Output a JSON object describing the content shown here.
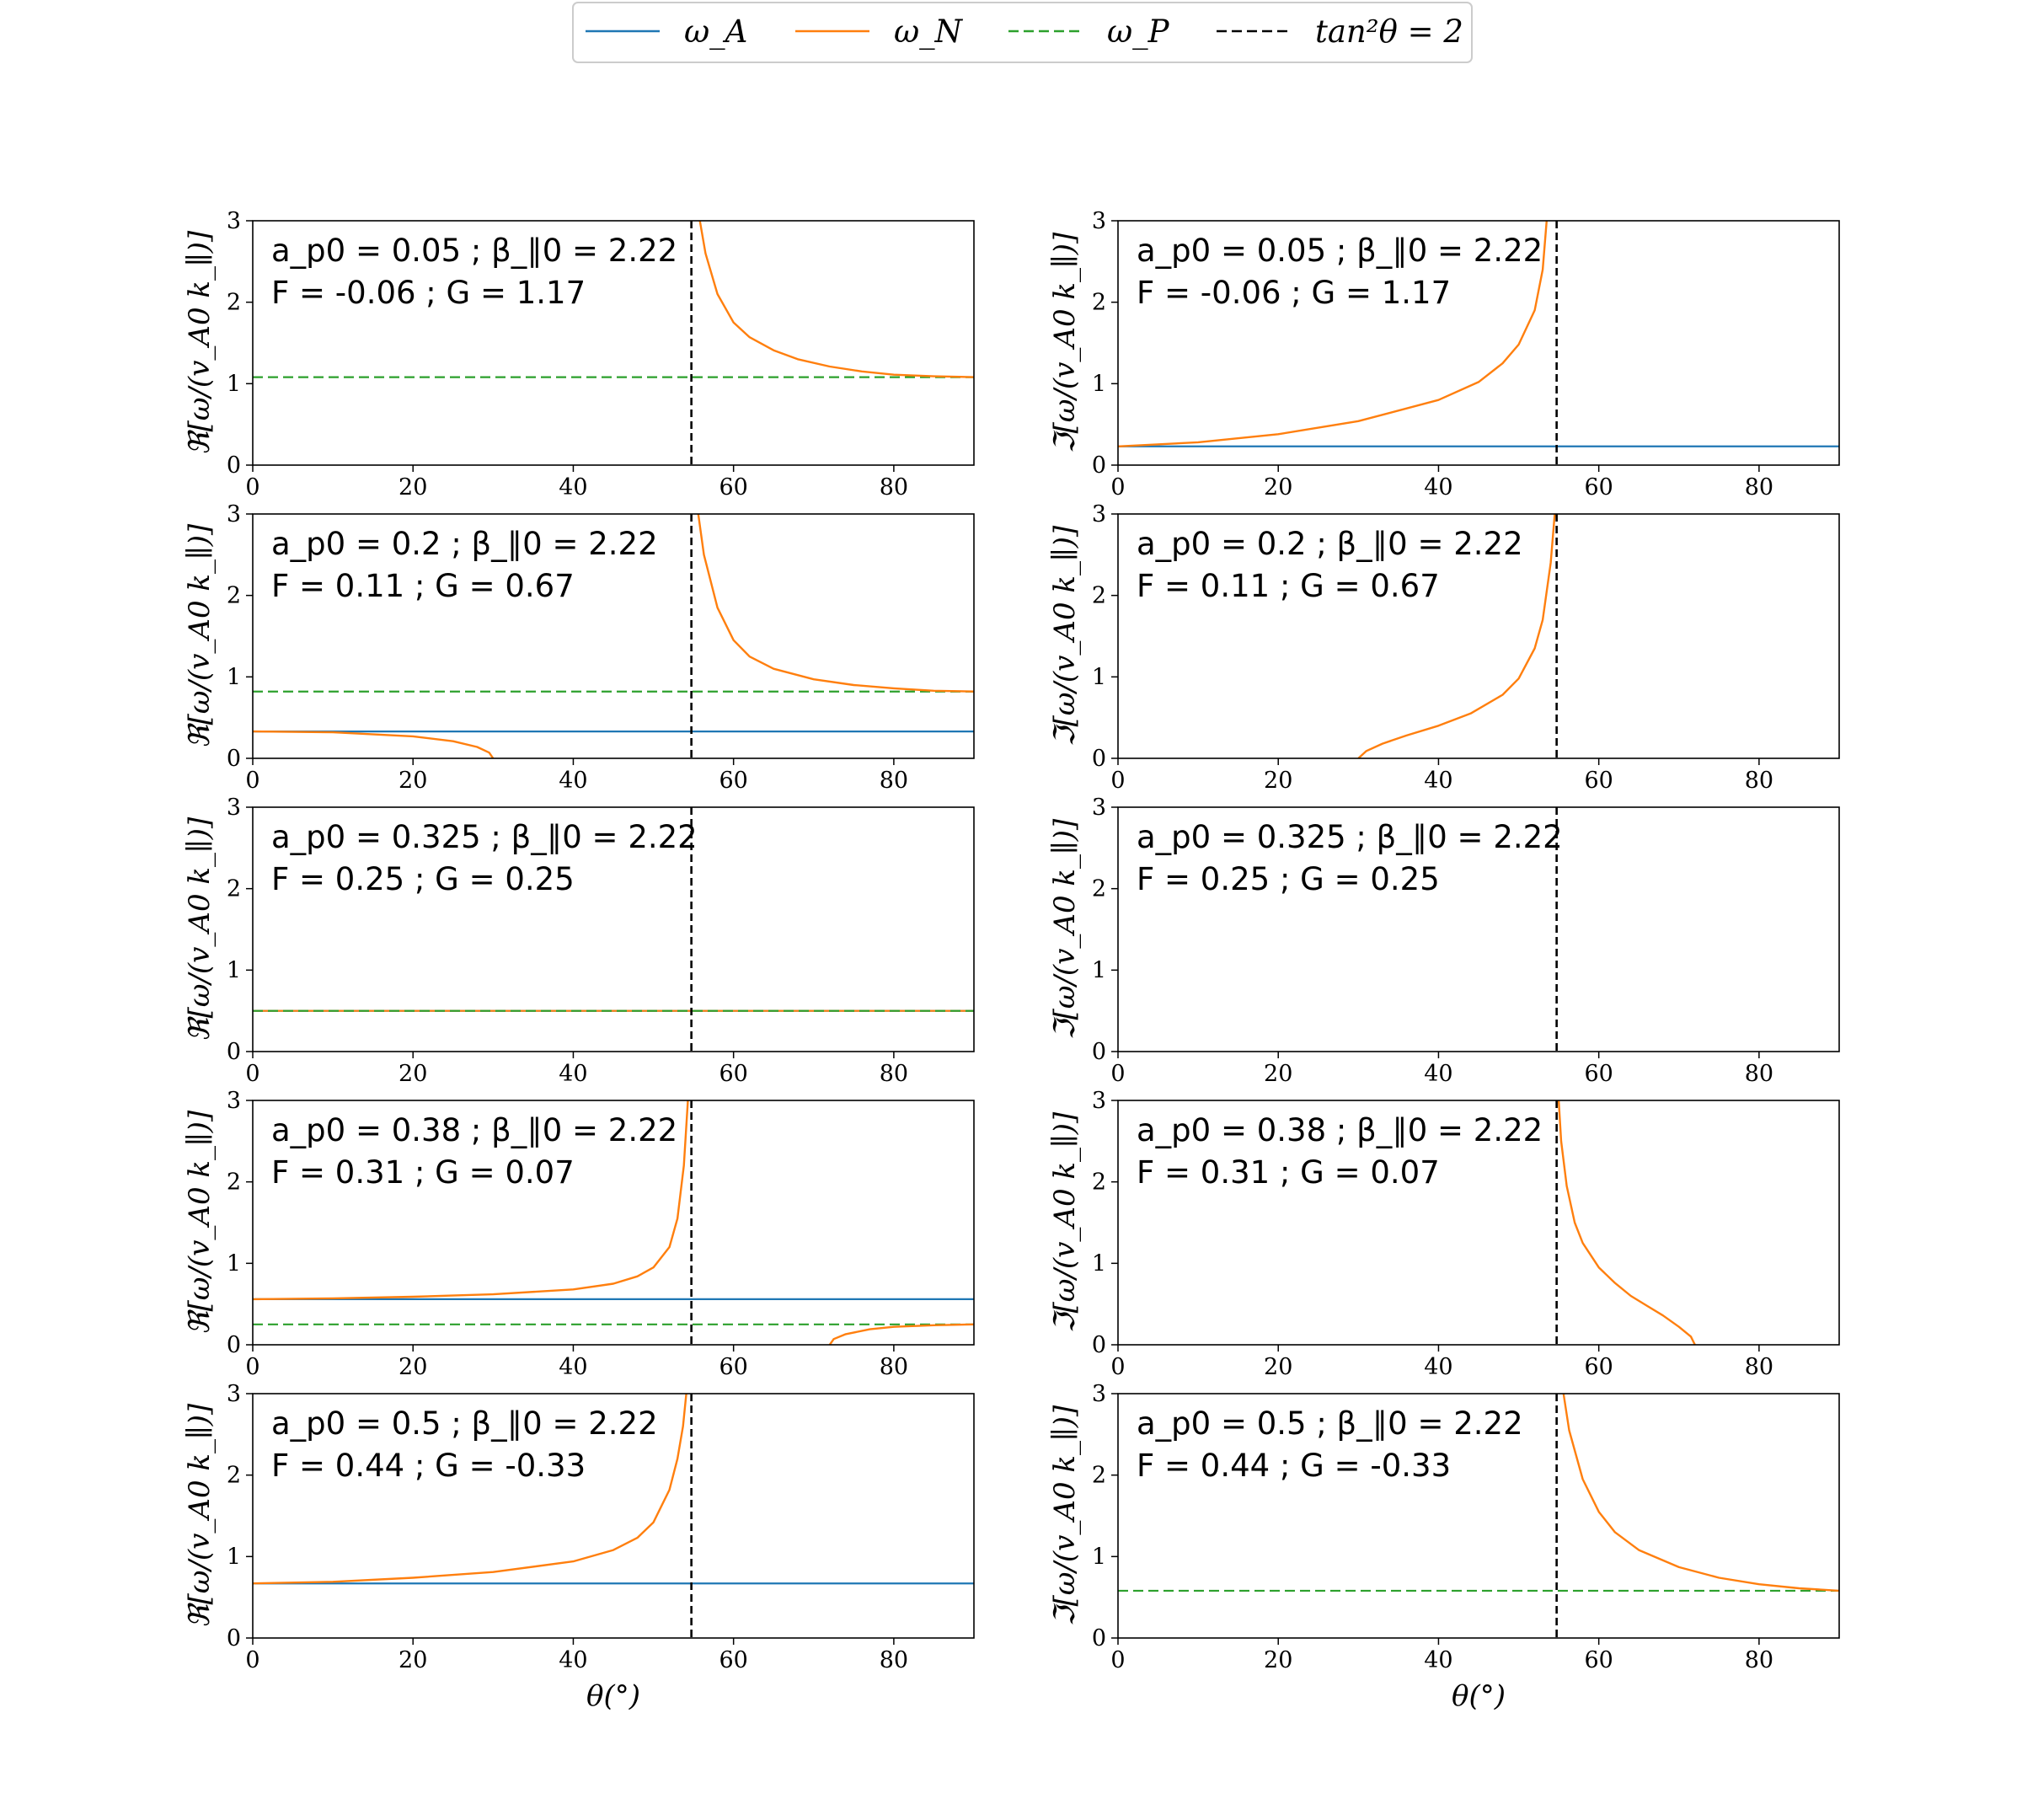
{
  "legend": [
    {
      "label": "ω_A",
      "color": "#1f77b4",
      "dash": "solid"
    },
    {
      "label": "ω_N",
      "color": "#ff7f0e",
      "dash": "solid"
    },
    {
      "label": "ω_P",
      "color": "#2ca02c",
      "dash": "dashed"
    },
    {
      "label": "tan²θ = 2",
      "color": "#000000",
      "dash": "dashed"
    }
  ],
  "colors": {
    "omega_A": "#1f77b4",
    "omega_N": "#ff7f0e",
    "omega_P": "#2ca02c",
    "vline": "#000000"
  },
  "x_axis_label": "θ(°)",
  "ylabel_real": "ℜ[ω/(v_A0 k_∥)]",
  "ylabel_imag": "ℑ[ω/(v_A0 k_∥)]",
  "chart_data": [
    {
      "type": "line",
      "panel": "real",
      "row": 1,
      "annotation_1": "a_p0 = 0.05 ; β_∥0 = 2.22",
      "annotation_2": "F = -0.06 ; G = 1.17",
      "xlim": [
        0,
        90
      ],
      "ylim": [
        0,
        3
      ],
      "xticks": [
        0,
        20,
        40,
        60,
        80
      ],
      "yticks": [
        0,
        1,
        2,
        3
      ],
      "vline_x": 54.74,
      "series": [
        {
          "name": "ω_P",
          "kind": "hline",
          "y": 1.08
        },
        {
          "name": "ω_N",
          "kind": "curve",
          "x": [
            55.8,
            56.5,
            58,
            60,
            62,
            65,
            68,
            72,
            76,
            80,
            85,
            90
          ],
          "y": [
            3.0,
            2.6,
            2.1,
            1.75,
            1.57,
            1.41,
            1.3,
            1.21,
            1.15,
            1.11,
            1.09,
            1.08
          ]
        }
      ]
    },
    {
      "type": "line",
      "panel": "imag",
      "row": 1,
      "annotation_1": "a_p0 = 0.05 ; β_∥0 = 2.22",
      "annotation_2": "F = -0.06 ; G = 1.17",
      "xlim": [
        0,
        90
      ],
      "ylim": [
        0,
        3
      ],
      "xticks": [
        0,
        20,
        40,
        60,
        80
      ],
      "yticks": [
        0,
        1,
        2,
        3
      ],
      "vline_x": 54.74,
      "series": [
        {
          "name": "ω_A",
          "kind": "hline",
          "y": 0.23
        },
        {
          "name": "ω_N",
          "kind": "curve",
          "x": [
            0,
            10,
            20,
            30,
            40,
            45,
            48,
            50,
            52,
            53,
            53.5
          ],
          "y": [
            0.23,
            0.28,
            0.38,
            0.54,
            0.8,
            1.02,
            1.25,
            1.48,
            1.9,
            2.4,
            3.0
          ]
        }
      ]
    },
    {
      "type": "line",
      "panel": "real",
      "row": 2,
      "annotation_1": "a_p0 = 0.2 ; β_∥0 = 2.22",
      "annotation_2": "F = 0.11 ; G = 0.67",
      "xlim": [
        0,
        90
      ],
      "ylim": [
        0,
        3
      ],
      "xticks": [
        0,
        20,
        40,
        60,
        80
      ],
      "yticks": [
        0,
        1,
        2,
        3
      ],
      "vline_x": 54.74,
      "series": [
        {
          "name": "ω_P",
          "kind": "hline",
          "y": 0.82
        },
        {
          "name": "ω_A",
          "kind": "hline",
          "y": 0.33
        },
        {
          "name": "ω_N",
          "kind": "curve",
          "x": [
            0,
            10,
            20,
            25,
            28,
            29.5,
            30
          ],
          "y": [
            0.33,
            0.32,
            0.27,
            0.21,
            0.14,
            0.07,
            0.0
          ]
        },
        {
          "name": "ω_N",
          "kind": "curve",
          "x": [
            55.6,
            56.3,
            58,
            60,
            62,
            65,
            70,
            75,
            80,
            85,
            90
          ],
          "y": [
            3.0,
            2.5,
            1.85,
            1.45,
            1.25,
            1.1,
            0.97,
            0.9,
            0.86,
            0.83,
            0.82
          ]
        }
      ]
    },
    {
      "type": "line",
      "panel": "imag",
      "row": 2,
      "annotation_1": "a_p0 = 0.2 ; β_∥0 = 2.22",
      "annotation_2": "F = 0.11 ; G = 0.67",
      "xlim": [
        0,
        90
      ],
      "ylim": [
        0,
        3
      ],
      "xticks": [
        0,
        20,
        40,
        60,
        80
      ],
      "yticks": [
        0,
        1,
        2,
        3
      ],
      "vline_x": 54.74,
      "series": [
        {
          "name": "ω_N",
          "kind": "curve",
          "x": [
            30,
            31,
            33,
            36,
            40,
            44,
            48,
            50,
            52,
            53,
            54,
            54.5
          ],
          "y": [
            0.0,
            0.09,
            0.18,
            0.28,
            0.4,
            0.55,
            0.78,
            0.98,
            1.35,
            1.7,
            2.4,
            3.0
          ]
        }
      ]
    },
    {
      "type": "line",
      "panel": "real",
      "row": 3,
      "annotation_1": "a_p0 = 0.325 ; β_∥0 = 2.22",
      "annotation_2": "F = 0.25 ; G = 0.25",
      "xlim": [
        0,
        90
      ],
      "ylim": [
        0,
        3
      ],
      "xticks": [
        0,
        20,
        40,
        60,
        80
      ],
      "yticks": [
        0,
        1,
        2,
        3
      ],
      "vline_x": 54.74,
      "series": [
        {
          "name": "ω_A",
          "kind": "hline",
          "y": 0.5
        },
        {
          "name": "ω_N",
          "kind": "hline",
          "y": 0.5
        },
        {
          "name": "ω_P",
          "kind": "hline",
          "y": 0.5
        }
      ]
    },
    {
      "type": "line",
      "panel": "imag",
      "row": 3,
      "annotation_1": "a_p0 = 0.325 ; β_∥0 = 2.22",
      "annotation_2": "F = 0.25 ; G = 0.25",
      "xlim": [
        0,
        90
      ],
      "ylim": [
        0,
        3
      ],
      "xticks": [
        0,
        20,
        40,
        60,
        80
      ],
      "yticks": [
        0,
        1,
        2,
        3
      ],
      "vline_x": 54.74,
      "series": []
    },
    {
      "type": "line",
      "panel": "real",
      "row": 4,
      "annotation_1": "a_p0 = 0.38 ; β_∥0 = 2.22",
      "annotation_2": "F = 0.31 ; G = 0.07",
      "xlim": [
        0,
        90
      ],
      "ylim": [
        0,
        3
      ],
      "xticks": [
        0,
        20,
        40,
        60,
        80
      ],
      "yticks": [
        0,
        1,
        2,
        3
      ],
      "vline_x": 54.74,
      "series": [
        {
          "name": "ω_A",
          "kind": "hline",
          "y": 0.56
        },
        {
          "name": "ω_P",
          "kind": "hline",
          "y": 0.25
        },
        {
          "name": "ω_N",
          "kind": "curve",
          "x": [
            0,
            10,
            20,
            30,
            40,
            45,
            48,
            50,
            52,
            53,
            53.8,
            54.3
          ],
          "y": [
            0.56,
            0.57,
            0.59,
            0.62,
            0.68,
            0.75,
            0.84,
            0.95,
            1.2,
            1.55,
            2.2,
            3.0
          ]
        },
        {
          "name": "ω_N",
          "kind": "curve",
          "x": [
            72,
            72.5,
            74,
            77,
            80,
            85,
            90
          ],
          "y": [
            0.0,
            0.07,
            0.13,
            0.19,
            0.22,
            0.24,
            0.25
          ]
        }
      ]
    },
    {
      "type": "line",
      "panel": "imag",
      "row": 4,
      "annotation_1": "a_p0 = 0.38 ; β_∥0 = 2.22",
      "annotation_2": "F = 0.31 ; G = 0.07",
      "xlim": [
        0,
        90
      ],
      "ylim": [
        0,
        3
      ],
      "xticks": [
        0,
        20,
        40,
        60,
        80
      ],
      "yticks": [
        0,
        1,
        2,
        3
      ],
      "vline_x": 54.74,
      "series": [
        {
          "name": "ω_N",
          "kind": "curve",
          "x": [
            55.0,
            55.3,
            56,
            57,
            58,
            60,
            62,
            64,
            66,
            68,
            70,
            71.5,
            72
          ],
          "y": [
            3.0,
            2.5,
            1.95,
            1.5,
            1.25,
            0.95,
            0.76,
            0.6,
            0.48,
            0.36,
            0.22,
            0.1,
            0.0
          ]
        }
      ]
    },
    {
      "type": "line",
      "panel": "real",
      "row": 5,
      "annotation_1": "a_p0 = 0.5 ; β_∥0 = 2.22",
      "annotation_2": "F = 0.44 ; G = -0.33",
      "xlim": [
        0,
        90
      ],
      "ylim": [
        0,
        3
      ],
      "xticks": [
        0,
        20,
        40,
        60,
        80
      ],
      "yticks": [
        0,
        1,
        2,
        3
      ],
      "vline_x": 54.74,
      "series": [
        {
          "name": "ω_A",
          "kind": "hline",
          "y": 0.67
        },
        {
          "name": "ω_N",
          "kind": "curve",
          "x": [
            0,
            10,
            20,
            30,
            40,
            45,
            48,
            50,
            52,
            53,
            53.7,
            54.1
          ],
          "y": [
            0.67,
            0.69,
            0.74,
            0.81,
            0.94,
            1.08,
            1.23,
            1.42,
            1.82,
            2.2,
            2.6,
            3.0
          ]
        }
      ]
    },
    {
      "type": "line",
      "panel": "imag",
      "row": 5,
      "annotation_1": "a_p0 = 0.5 ; β_∥0 = 2.22",
      "annotation_2": "F = 0.44 ; G = -0.33",
      "xlim": [
        0,
        90
      ],
      "ylim": [
        0,
        3
      ],
      "xticks": [
        0,
        20,
        40,
        60,
        80
      ],
      "yticks": [
        0,
        1,
        2,
        3
      ],
      "vline_x": 54.74,
      "series": [
        {
          "name": "ω_P",
          "kind": "hline",
          "y": 0.58
        },
        {
          "name": "ω_N",
          "kind": "curve",
          "x": [
            55.6,
            56.3,
            58,
            60,
            62,
            65,
            70,
            75,
            80,
            85,
            90
          ],
          "y": [
            3.0,
            2.55,
            1.95,
            1.55,
            1.3,
            1.08,
            0.87,
            0.74,
            0.66,
            0.61,
            0.58
          ]
        }
      ]
    }
  ]
}
